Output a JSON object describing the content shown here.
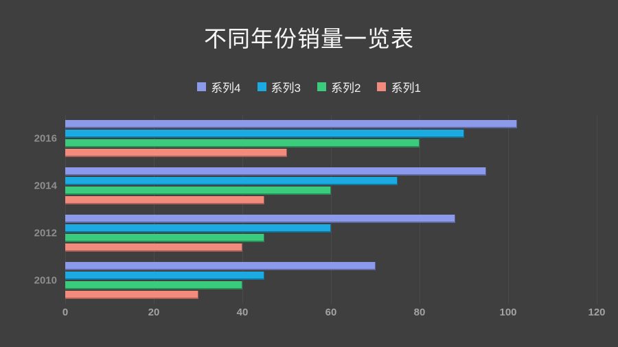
{
  "title": "不同年份销量一览表",
  "background_color": "#3F3F3F",
  "chart_data": {
    "type": "bar",
    "orientation": "horizontal",
    "title": "不同年份销量一览表",
    "categories": [
      "2016",
      "2014",
      "2012",
      "2010"
    ],
    "series": [
      {
        "name": "系列4",
        "color": "#8C9AEC",
        "values": [
          102,
          95,
          88,
          70
        ]
      },
      {
        "name": "系列3",
        "color": "#1BABE2",
        "values": [
          90,
          75,
          60,
          45
        ]
      },
      {
        "name": "系列2",
        "color": "#3BCB7D",
        "values": [
          80,
          60,
          45,
          40
        ]
      },
      {
        "name": "系列1",
        "color": "#F28B7E",
        "values": [
          50,
          45,
          40,
          30
        ]
      }
    ],
    "xlim": [
      0,
      120
    ],
    "xticks": [
      0,
      20,
      40,
      60,
      80,
      100,
      120
    ],
    "grid": true,
    "gridline_color": "#4B4B4B",
    "legend_position": "top",
    "axis_label_color": "#A3A3A3",
    "category_label_color": "#8E8E8E",
    "title_color": "#F7F7F7"
  }
}
